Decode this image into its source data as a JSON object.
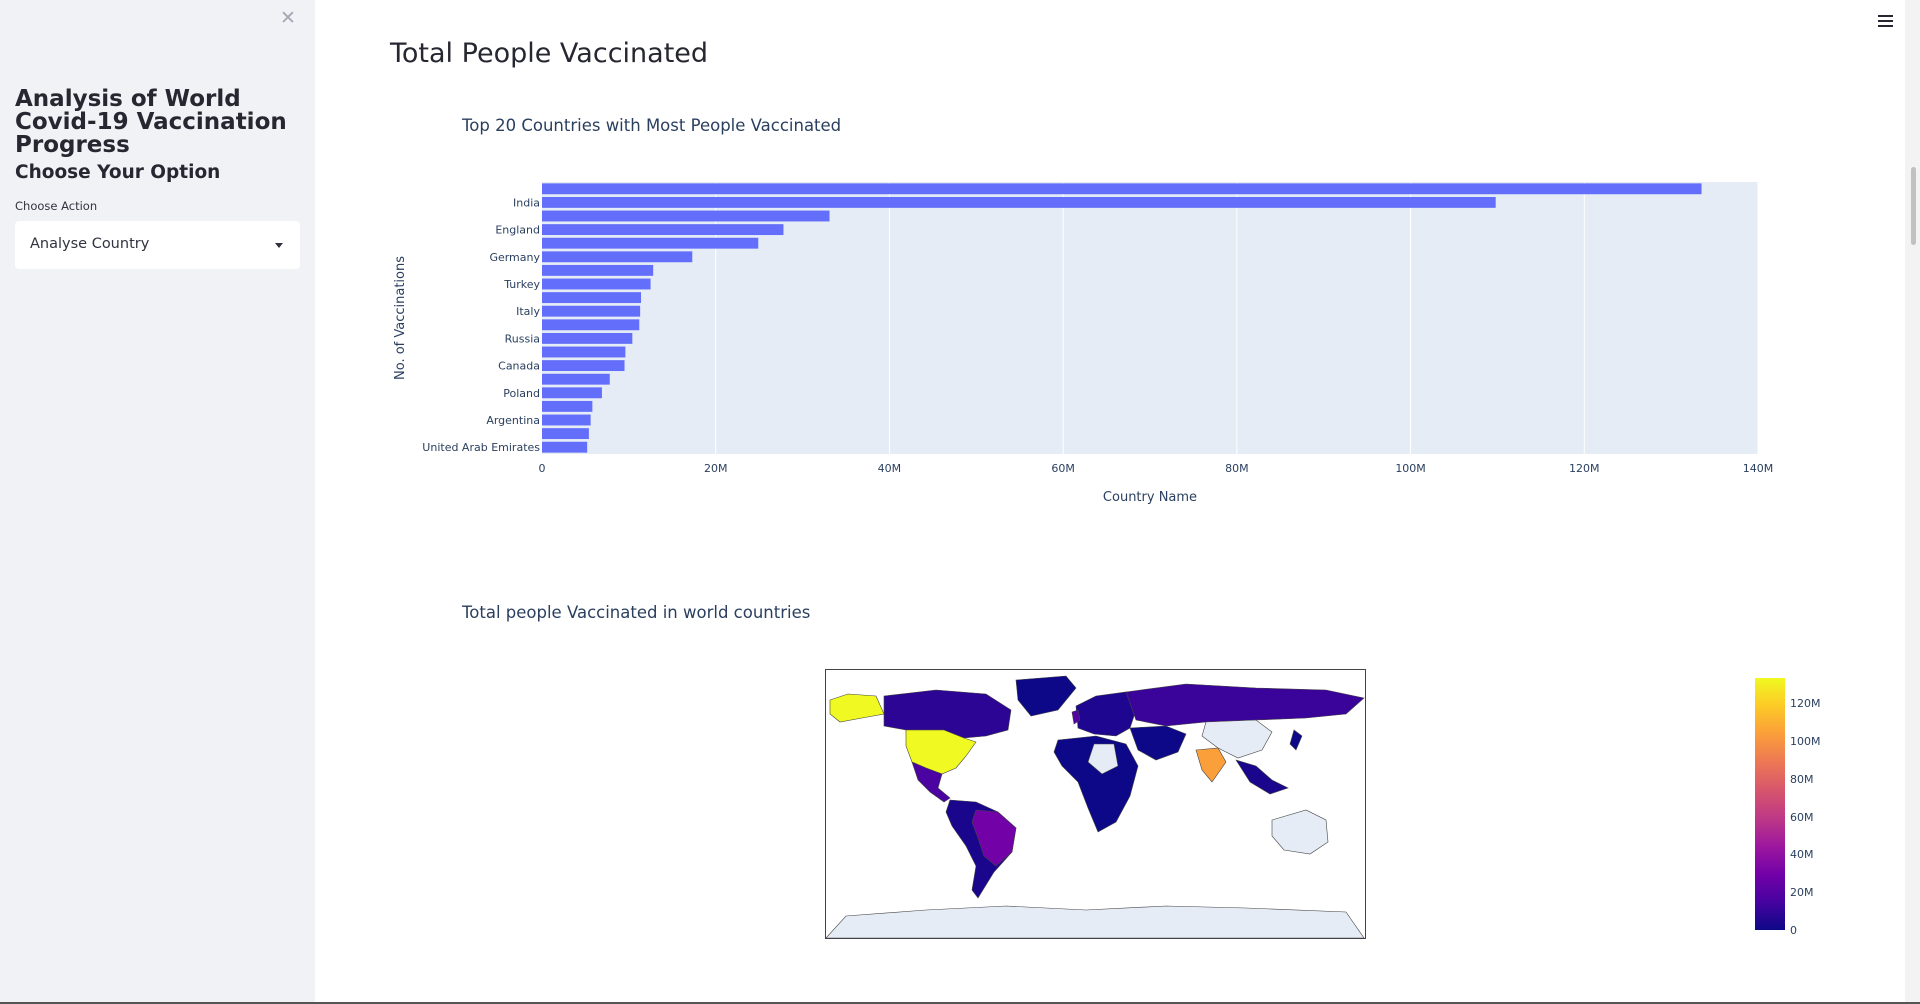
{
  "sidebar": {
    "title": "Analysis of World Covid-19 Vaccination Progress",
    "subtitle": "Choose Your Option",
    "select_label": "Choose Action",
    "select_value": "Analyse Country",
    "close_icon": "close-icon"
  },
  "main": {
    "page_title": "Total People Vaccinated",
    "menu_icon": "hamburger-menu-icon"
  },
  "chart_data": [
    {
      "type": "bar",
      "orientation": "horizontal",
      "title": "Top 20 Countries with Most People Vaccinated",
      "xlabel": "Country Name",
      "ylabel": "No. of Vaccinations",
      "x_ticks": [
        "0",
        "20M",
        "40M",
        "60M",
        "80M",
        "100M",
        "120M",
        "140M"
      ],
      "xlim": [
        0,
        140000000
      ],
      "grid": true,
      "bar_color": "#636efa",
      "plot_bg": "#e5ecf6",
      "categories": [
        "",
        "India",
        "",
        "England",
        "",
        "Germany",
        "",
        "Turkey",
        "",
        "Italy",
        "",
        "Russia",
        "",
        "Canada",
        "",
        "Poland",
        "",
        "Argentina",
        "",
        "United Arab Emirates"
      ],
      "values": [
        133500000,
        109800000,
        33100000,
        27800000,
        24900000,
        17300000,
        12800000,
        12500000,
        11400000,
        11300000,
        11200000,
        10400000,
        9600000,
        9500000,
        7800000,
        6900000,
        5800000,
        5600000,
        5400000,
        5200000
      ]
    },
    {
      "type": "choropleth",
      "title": "Total people Vaccinated in world countries",
      "colorscale": [
        "#0d0887",
        "#46039f",
        "#7201a8",
        "#9c179e",
        "#bd3786",
        "#d8576b",
        "#ed7953",
        "#fb9f3a",
        "#fdca26",
        "#f0f921"
      ],
      "colorbar_ticks": [
        "0",
        "20M",
        "40M",
        "60M",
        "80M",
        "100M",
        "120M"
      ],
      "colorbar_range": [
        0,
        133500000
      ],
      "no_data_color": "#e5ecf6"
    }
  ]
}
